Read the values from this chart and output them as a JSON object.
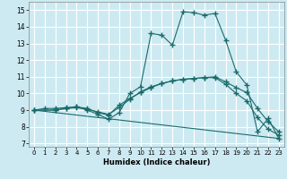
{
  "xlabel": "Humidex (Indice chaleur)",
  "xlim": [
    -0.5,
    23.5
  ],
  "ylim": [
    6.8,
    15.5
  ],
  "yticks": [
    7,
    8,
    9,
    10,
    11,
    12,
    13,
    14,
    15
  ],
  "xticks": [
    0,
    1,
    2,
    3,
    4,
    5,
    6,
    7,
    8,
    9,
    10,
    11,
    12,
    13,
    14,
    15,
    16,
    17,
    18,
    19,
    20,
    21,
    22,
    23
  ],
  "bg_color": "#cdeaf2",
  "line_color": "#1a6b6b",
  "grid_color": "#ffffff",
  "series1_x": [
    0,
    1,
    2,
    3,
    4,
    5,
    6,
    7,
    8,
    9,
    10,
    11,
    12,
    13,
    14,
    15,
    16,
    17,
    18,
    19,
    20,
    21,
    22,
    23
  ],
  "series1_y": [
    9.0,
    9.1,
    9.1,
    9.15,
    9.2,
    9.0,
    8.75,
    8.45,
    8.85,
    10.0,
    10.4,
    13.6,
    13.5,
    12.9,
    14.9,
    14.85,
    14.7,
    14.8,
    13.2,
    11.3,
    10.5,
    7.7,
    8.5,
    7.3
  ],
  "series2_x": [
    0,
    2,
    3,
    4,
    5,
    6,
    7,
    8,
    9,
    10,
    11,
    12,
    13,
    14,
    15,
    16,
    17,
    18,
    19,
    20,
    21,
    22,
    23
  ],
  "series2_y": [
    9.0,
    9.0,
    9.1,
    9.2,
    9.1,
    8.85,
    8.7,
    9.3,
    9.7,
    10.05,
    10.35,
    10.6,
    10.75,
    10.85,
    10.9,
    10.95,
    11.0,
    10.7,
    10.35,
    10.05,
    9.1,
    8.3,
    7.7
  ],
  "series3_x": [
    0,
    2,
    3,
    4,
    5,
    6,
    7,
    8,
    9,
    10,
    11,
    12,
    13,
    14,
    15,
    16,
    17,
    18,
    19,
    20,
    21,
    22,
    23
  ],
  "series3_y": [
    9.0,
    9.0,
    9.1,
    9.15,
    9.05,
    8.9,
    8.75,
    9.15,
    9.65,
    10.1,
    10.4,
    10.6,
    10.75,
    10.85,
    10.9,
    10.95,
    10.95,
    10.55,
    10.0,
    9.55,
    8.55,
    7.85,
    7.5
  ],
  "series4_x": [
    0,
    23
  ],
  "series4_y": [
    9.0,
    7.3
  ]
}
